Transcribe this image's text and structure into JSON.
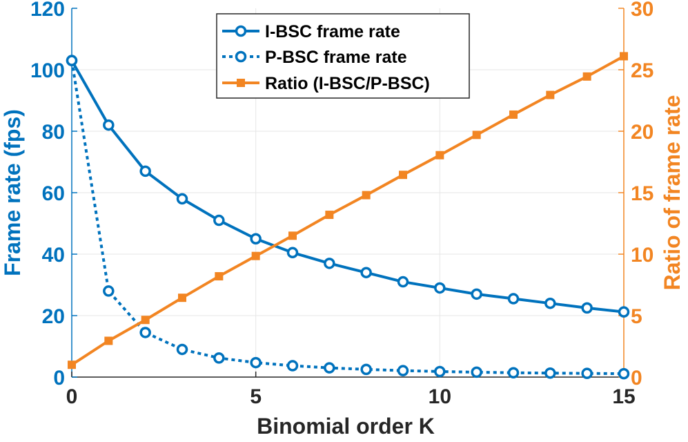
{
  "chart_data": {
    "type": "line",
    "xlabel": "Binomial order K",
    "ylabel_left": "Frame rate (fps)",
    "ylabel_right": "Ratio of frame rate",
    "xlim": [
      0,
      15
    ],
    "ylim_left": [
      0,
      120
    ],
    "ylim_right": [
      0,
      30
    ],
    "x_ticks": [
      0,
      5,
      10,
      15
    ],
    "y_ticks_left": [
      0,
      20,
      40,
      60,
      80,
      100,
      120
    ],
    "y_ticks_right": [
      0,
      5,
      10,
      15,
      20,
      25,
      30
    ],
    "grid": true,
    "legend_position": "top-center",
    "x": [
      0,
      1,
      2,
      3,
      4,
      5,
      6,
      7,
      8,
      9,
      10,
      11,
      12,
      13,
      14,
      15
    ],
    "series": [
      {
        "name": "I-BSC frame rate",
        "axis": "left",
        "style": "solid",
        "marker": "circle",
        "color": "#0072BD",
        "values": [
          103,
          82,
          67,
          58,
          51,
          45,
          40.5,
          37,
          34,
          31,
          29,
          27,
          25.5,
          24,
          22.5,
          21.2
        ]
      },
      {
        "name": "P-BSC frame rate",
        "axis": "left",
        "style": "dotted",
        "marker": "circle",
        "color": "#0072BD",
        "values": [
          103,
          28,
          14.5,
          9,
          6.2,
          4.7,
          3.7,
          3,
          2.5,
          2.1,
          1.8,
          1.6,
          1.4,
          1.3,
          1.2,
          1.1
        ]
      },
      {
        "name": "Ratio (I-BSC/P-BSC)",
        "axis": "right",
        "style": "solid",
        "marker": "square",
        "color": "#F28522",
        "values": [
          1,
          2.95,
          4.65,
          6.45,
          8.2,
          9.85,
          11.5,
          13.2,
          14.8,
          16.45,
          18.05,
          19.7,
          21.35,
          22.95,
          24.45,
          26.1
        ]
      }
    ]
  }
}
